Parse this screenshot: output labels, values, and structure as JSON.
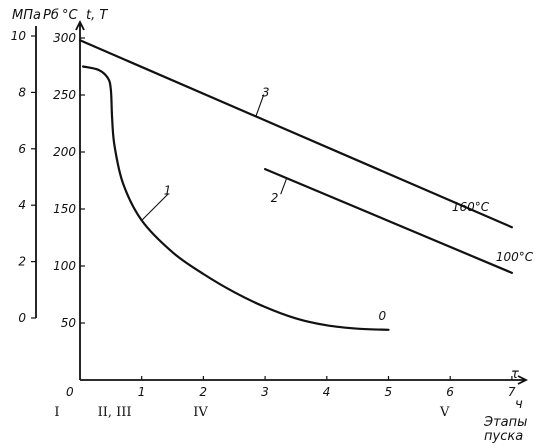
{
  "chart_data": {
    "type": "line",
    "axes": {
      "x": {
        "label": "τ",
        "unit": "ч",
        "range": [
          0,
          7.3
        ],
        "ticks": [
          {
            "value": 0,
            "label": "0"
          },
          {
            "value": 1,
            "label": "1"
          },
          {
            "value": 2,
            "label": "2"
          },
          {
            "value": 3,
            "label": "3"
          },
          {
            "value": 4,
            "label": "4"
          },
          {
            "value": 5,
            "label": "5"
          },
          {
            "value": 6,
            "label": "6"
          },
          {
            "value": 7,
            "label": "7"
          }
        ]
      },
      "y_temperature": {
        "label": "t, T",
        "unit": "°C",
        "range": [
          0,
          310
        ],
        "ticks": [
          {
            "value": 50,
            "label": "50"
          },
          {
            "value": 100,
            "label": "100"
          },
          {
            "value": 150,
            "label": "150"
          },
          {
            "value": 200,
            "label": "200"
          },
          {
            "value": 250,
            "label": "250"
          },
          {
            "value": 300,
            "label": "300"
          }
        ]
      },
      "y_pressure": {
        "label": "Pб",
        "unit": "МПа",
        "range": [
          0,
          10.5
        ],
        "ticks": [
          {
            "value": 0,
            "label": "0"
          },
          {
            "value": 2,
            "label": "2"
          },
          {
            "value": 4,
            "label": "4"
          },
          {
            "value": 6,
            "label": "6"
          },
          {
            "value": 8,
            "label": "8"
          },
          {
            "value": 10,
            "label": "10"
          }
        ]
      }
    },
    "series": [
      {
        "name": "1",
        "axis": "y_temperature",
        "points": [
          [
            0.05,
            275
          ],
          [
            0.3,
            272
          ],
          [
            0.45,
            265
          ],
          [
            0.5,
            255
          ],
          [
            0.52,
            230
          ],
          [
            0.56,
            205
          ],
          [
            0.7,
            172
          ],
          [
            1.0,
            140
          ],
          [
            1.5,
            112
          ],
          [
            2.0,
            93
          ],
          [
            2.5,
            77
          ],
          [
            3.0,
            64
          ],
          [
            3.5,
            54
          ],
          [
            4.0,
            48
          ],
          [
            4.5,
            45
          ],
          [
            5.0,
            44
          ]
        ],
        "end_label": "0"
      },
      {
        "name": "2",
        "axis": "y_temperature",
        "points": [
          [
            3.0,
            185
          ],
          [
            7.0,
            94
          ]
        ],
        "end_label": "100°C"
      },
      {
        "name": "3",
        "axis": "y_temperature",
        "points": [
          [
            0.0,
            298
          ],
          [
            7.0,
            134
          ]
        ],
        "end_label": "160°C"
      }
    ],
    "stages": {
      "title_line1": "Этапы",
      "title_line2": "пуска",
      "items": [
        {
          "label": "I",
          "x": -0.35
        },
        {
          "label": "II, III",
          "x": 0.35
        },
        {
          "label": "IV",
          "x": 1.9
        },
        {
          "label": "V",
          "x": 5.9
        }
      ]
    }
  }
}
